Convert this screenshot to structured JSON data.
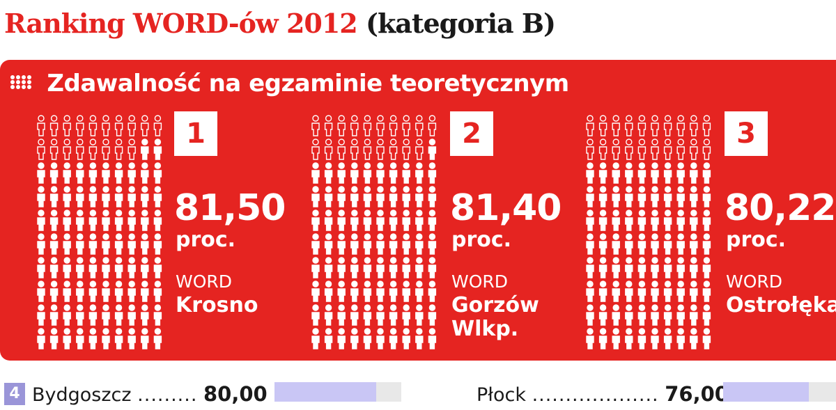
{
  "header": {
    "title_main": "Ranking WORD-ów 2012",
    "title_sub": "(kategoria B)"
  },
  "panel": {
    "subtitle": "Zdawalność na egzaminie teoretycznym"
  },
  "podium": [
    {
      "rank": "1",
      "value_text": "81,50",
      "unit": "proc.",
      "word_label": "WORD",
      "city": "Krosno"
    },
    {
      "rank": "2",
      "value_text": "81,40",
      "unit": "proc.",
      "word_label": "WORD",
      "city": "Gorzów\nWlkp."
    },
    {
      "rank": "3",
      "value_text": "80,22",
      "unit": "proc.",
      "word_label": "WORD",
      "city": "Ostrołęka"
    }
  ],
  "ranking_rows": [
    {
      "rank": "4",
      "city": "Bydgoszcz",
      "leader": ".........",
      "value_text": "80,00"
    },
    {
      "city": "Płock",
      "leader": "...................",
      "value_text": "76,00"
    }
  ],
  "chart_data": {
    "type": "bar",
    "title": "Ranking WORD-ów 2012 (kategoria B)",
    "subtitle": "Zdawalność na egzaminie teoretycznym",
    "unit": "proc.",
    "categories": [
      "WORD Krosno",
      "WORD Gorzów Wlkp.",
      "WORD Ostrołęka",
      "Bydgoszcz",
      "Płock"
    ],
    "values": [
      81.5,
      81.4,
      80.22,
      80.0,
      76.0
    ],
    "ranks": [
      1,
      2,
      3,
      4,
      null
    ],
    "ylim": [
      0,
      100
    ]
  },
  "colors": {
    "accent_red": "#e52421",
    "bar_fill": "#c9c6f5",
    "bar_track": "#e8e8e8",
    "rank_badge": "#9a95d8"
  }
}
